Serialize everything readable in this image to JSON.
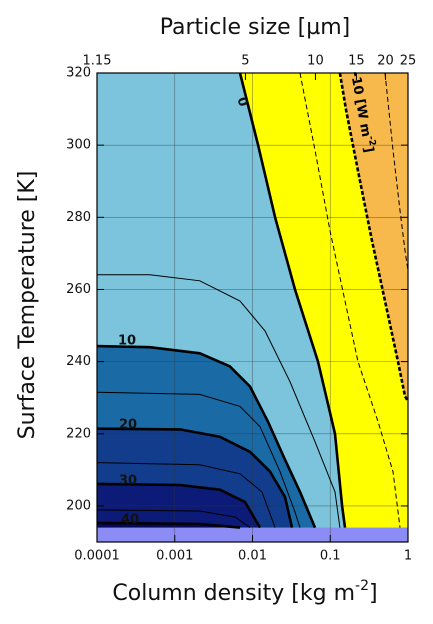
{
  "chart_data": {
    "type": "contour",
    "x2label": "Particle size [µm]",
    "ylabel": "Surface Temperature [K]",
    "xlabel": {
      "text": "Column density [kg m",
      "sup": "-2",
      "end": "]"
    },
    "xscale": "log",
    "xlim": [
      0.0001,
      1
    ],
    "xticks": [
      0.0001,
      0.001,
      0.01,
      0.1,
      1
    ],
    "x2scale": "log",
    "x2lim": [
      1.15,
      25
    ],
    "x2ticks": [
      1.15,
      5,
      10,
      15,
      20,
      25
    ],
    "ylim": [
      190,
      320
    ],
    "yticks": [
      200,
      220,
      240,
      260,
      280,
      300,
      320
    ],
    "grid": true,
    "background": "#f8b94c",
    "band": {
      "ylim": [
        190,
        194
      ],
      "color": "#8c8cf5"
    },
    "contours": [
      {
        "level": -10,
        "fill": "#ffff00",
        "label": {
          "text": "-10 [W m",
          "sup": "-2",
          "end": "]"
        },
        "x": [
          0.133,
          0.16,
          0.227,
          0.344,
          0.506,
          0.743,
          0.914,
          1
        ],
        "y": [
          320,
          309.7,
          293,
          273.5,
          256.8,
          240,
          230.4,
          229
        ]
      },
      {
        "level": 0,
        "fill": "#7bc4dc",
        "label": 0,
        "x": [
          0.0069,
          0.0118,
          0.0195,
          0.0352,
          0.0696,
          0.115,
          0.142,
          0.155
        ],
        "y": [
          320,
          300,
          280,
          260,
          240,
          220,
          200,
          194
        ]
      },
      {
        "level": 10,
        "fill": "#1a6aa6",
        "label": 10,
        "x": [
          0.0001,
          0.00048,
          0.0021,
          0.0051,
          0.0093,
          0.0158,
          0.0262,
          0.0408,
          0.0637
        ],
        "y": [
          244.3,
          244,
          242.3,
          238.7,
          233.1,
          223.4,
          212.8,
          203.9,
          194
        ]
      },
      {
        "level": 20,
        "fill": "#123c8c",
        "label": 20,
        "x": [
          0.0001,
          0.00117,
          0.0038,
          0.0093,
          0.0168,
          0.0262,
          0.0322
        ],
        "y": [
          221.4,
          221.2,
          219.2,
          215,
          209.5,
          202.5,
          194
        ]
      },
      {
        "level": 30,
        "fill": "#0c1a78",
        "label": 30,
        "x": [
          0.0001,
          0.00117,
          0.0038,
          0.008,
          0.0125
        ],
        "y": [
          206.1,
          205.8,
          204.5,
          201.1,
          194
        ]
      },
      {
        "level": 40,
        "fill": "#08085a",
        "label": 40,
        "x": [
          0.0001,
          0.0021,
          0.0069
        ],
        "y": [
          195.3,
          195,
          194
        ]
      },
      {
        "level": 5,
        "x": [
          0.0001,
          0.00048,
          0.0021,
          0.0069,
          0.0145,
          0.0303,
          0.0637,
          0.115,
          0.133
        ],
        "y": [
          264.1,
          264.1,
          262.4,
          256.8,
          248.5,
          234.5,
          217.8,
          203.9,
          194
        ]
      },
      {
        "level": 15,
        "x": [
          0.0001,
          0.0021,
          0.0069,
          0.0125,
          0.0226,
          0.0352,
          0.0408
        ],
        "y": [
          231.5,
          230.9,
          227.6,
          222,
          209.5,
          198.3,
          194
        ]
      },
      {
        "level": 25,
        "x": [
          0.0001,
          0.0021,
          0.0069,
          0.0132,
          0.0195
        ],
        "y": [
          212,
          211.4,
          208.9,
          203.9,
          194
        ]
      },
      {
        "level": 35,
        "x": [
          0.0001,
          0.0021,
          0.006,
          0.0093
        ],
        "y": [
          198.9,
          198.6,
          196.9,
          194
        ]
      },
      {
        "level": -5,
        "x": [
          0.0408,
          0.0637,
          0.0993,
          0.155,
          0.227,
          0.411,
          0.641,
          0.789
        ],
        "y": [
          320,
          298.6,
          276.3,
          256.8,
          240.1,
          223.4,
          209.5,
          194
        ]
      },
      {
        "level": -15,
        "x": [
          0.506,
          0.641,
          0.789,
          0.914,
          1
        ],
        "y": [
          320,
          298.6,
          281.9,
          270.8,
          265.2
        ]
      }
    ]
  }
}
